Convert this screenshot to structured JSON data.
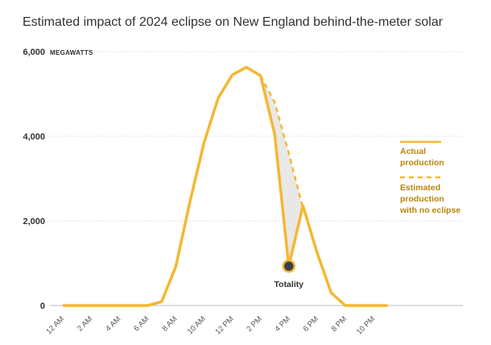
{
  "chart_data": {
    "type": "line",
    "title": "Estimated impact of 2024 eclipse on New England behind-the-meter solar",
    "ylabel": "MEGAWATTS",
    "ylim": [
      0,
      6000
    ],
    "yticks": [
      0,
      2000,
      4000,
      6000
    ],
    "ytick_labels": [
      "0",
      "2,000",
      "4,000",
      "6,000"
    ],
    "grid": true,
    "xtick_labels": [
      "12 AM",
      "2 AM",
      "4 AM",
      "6 AM",
      "8 AM",
      "10 AM",
      "12 PM",
      "2 PM",
      "4 PM",
      "6 PM",
      "8 PM",
      "10 PM"
    ],
    "xticks": [
      0,
      2,
      4,
      6,
      8,
      10,
      12,
      14,
      16,
      18,
      20,
      22
    ],
    "legend_position": "right",
    "series": [
      {
        "name": "Actual production",
        "style": "solid",
        "x": [
          0,
          1,
          2,
          3,
          4,
          5,
          6,
          7,
          8,
          9,
          10,
          11,
          12,
          13,
          14,
          15,
          16,
          17,
          18,
          19,
          20,
          21,
          22,
          23
        ],
        "y": [
          0,
          0,
          0,
          0,
          0,
          0,
          0,
          90,
          920,
          2450,
          3850,
          4900,
          5450,
          5630,
          5430,
          4050,
          930,
          2360,
          1250,
          300,
          0,
          0,
          0,
          0
        ]
      },
      {
        "name": "Estimated production with no eclipse",
        "style": "dashed",
        "x": [
          14,
          15,
          16,
          17
        ],
        "y": [
          5430,
          4800,
          3600,
          2300
        ]
      }
    ],
    "annotations": [
      {
        "text": "Totality",
        "x": 16,
        "y": 930
      }
    ],
    "colors": {
      "line": "#f5b731",
      "marker": "#3b4045",
      "fill": "#e8e8e8",
      "legend_text": "#b8860b"
    }
  }
}
